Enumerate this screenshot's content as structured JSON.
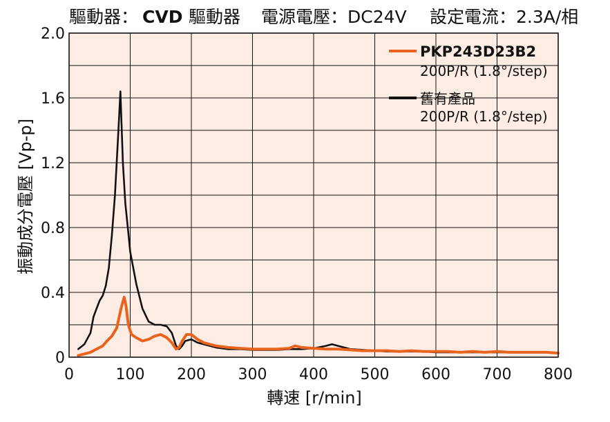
{
  "header": {
    "driver_label": "驅動器：",
    "driver_brand": "CVD",
    "driver_suffix": "驅動器",
    "voltage": "電源電壓：DC24V",
    "current": "設定電流：2.3A/相"
  },
  "chart_data": {
    "type": "line",
    "title": "驅動器：CVD 驅動器　電源電壓：DC24V　設定電流：2.3A/相",
    "xlabel": "轉速 [r/min]",
    "ylabel": "振動成分電壓 [Vp-p]",
    "xlim": [
      0,
      800
    ],
    "ylim": [
      0,
      2.0
    ],
    "x_ticks": [
      0,
      100,
      200,
      300,
      400,
      500,
      600,
      700,
      800
    ],
    "y_ticks": [
      0,
      0.4,
      0.8,
      1.2,
      1.6,
      2.0
    ],
    "y_tick_labels": [
      "0",
      "0.4",
      "0.8",
      "1.2",
      "1.6",
      "2.0"
    ],
    "grid": true,
    "background_color": "#fdece3",
    "legend_position": "top-right",
    "series": [
      {
        "name": "PKP243D23B2",
        "detail": "200P/R (1.8°/step)",
        "color": "#e8641e",
        "x": [
          15,
          25,
          35,
          45,
          55,
          62,
          70,
          78,
          85,
          90,
          93,
          97,
          102,
          110,
          120,
          130,
          140,
          150,
          160,
          168,
          175,
          180,
          185,
          192,
          200,
          210,
          220,
          240,
          260,
          280,
          300,
          320,
          340,
          360,
          370,
          380,
          400,
          420,
          440,
          460,
          480,
          500,
          520,
          540,
          560,
          580,
          600,
          620,
          640,
          660,
          680,
          700,
          720,
          740,
          760,
          780,
          800
        ],
        "y": [
          0.01,
          0.02,
          0.03,
          0.05,
          0.07,
          0.1,
          0.13,
          0.18,
          0.3,
          0.37,
          0.32,
          0.2,
          0.14,
          0.12,
          0.1,
          0.11,
          0.13,
          0.14,
          0.12,
          0.09,
          0.05,
          0.06,
          0.1,
          0.14,
          0.14,
          0.11,
          0.09,
          0.07,
          0.06,
          0.055,
          0.05,
          0.05,
          0.05,
          0.055,
          0.07,
          0.06,
          0.055,
          0.05,
          0.05,
          0.045,
          0.04,
          0.04,
          0.04,
          0.035,
          0.04,
          0.035,
          0.035,
          0.035,
          0.03,
          0.035,
          0.03,
          0.035,
          0.03,
          0.03,
          0.03,
          0.03,
          0.025
        ]
      },
      {
        "name": "舊有產品",
        "detail": "200P/R (1.8°/step)",
        "color": "#111111",
        "x": [
          15,
          25,
          35,
          40,
          45,
          50,
          55,
          60,
          65,
          70,
          75,
          80,
          84,
          88,
          92,
          96,
          100,
          110,
          120,
          130,
          140,
          150,
          160,
          168,
          175,
          180,
          185,
          190,
          200,
          210,
          220,
          240,
          260,
          280,
          300,
          320,
          340,
          360,
          380,
          400,
          420,
          430,
          440,
          460,
          480,
          500,
          520,
          540,
          560,
          580,
          600,
          620,
          640,
          660,
          680,
          700,
          720,
          740,
          760,
          780,
          800
        ],
        "y": [
          0.05,
          0.08,
          0.15,
          0.25,
          0.3,
          0.35,
          0.38,
          0.44,
          0.55,
          0.75,
          1.0,
          1.35,
          1.64,
          1.2,
          0.95,
          0.8,
          0.65,
          0.45,
          0.3,
          0.22,
          0.2,
          0.2,
          0.19,
          0.15,
          0.07,
          0.05,
          0.07,
          0.1,
          0.11,
          0.09,
          0.08,
          0.06,
          0.05,
          0.05,
          0.045,
          0.045,
          0.045,
          0.05,
          0.05,
          0.055,
          0.07,
          0.08,
          0.07,
          0.05,
          0.045,
          0.04,
          0.035,
          0.035,
          0.035,
          0.035,
          0.03,
          0.03,
          0.03,
          0.03,
          0.03,
          0.03,
          0.03,
          0.03,
          0.03,
          0.03,
          0.025
        ]
      }
    ]
  }
}
